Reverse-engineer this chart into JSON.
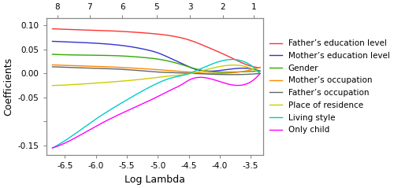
{
  "xlim": [
    -6.8,
    -3.3
  ],
  "ylim": [
    -0.17,
    0.115
  ],
  "xlabel": "Log Lambda",
  "ylabel": "Coefficients",
  "top_ticks": [
    "8",
    "7",
    "6",
    "5",
    "3",
    "2",
    "1"
  ],
  "top_tick_positions": [
    -6.62,
    -6.1,
    -5.57,
    -5.02,
    -4.48,
    -3.95,
    -3.45
  ],
  "xticks": [
    -6.5,
    -6.0,
    -5.5,
    -5.0,
    -4.5,
    -4.0,
    -3.5
  ],
  "yticks": [
    -0.15,
    -0.1,
    -0.05,
    0.0,
    0.05,
    0.1
  ],
  "ytick_labels": [
    "-0.15",
    "",
    "-0.05",
    "0.00",
    "0.05",
    "0.10"
  ],
  "series": [
    {
      "name": "Father’s education level",
      "color": "#FF3333",
      "points_x": [
        -6.7,
        -6.5,
        -6.0,
        -5.5,
        -5.0,
        -4.5,
        -4.2,
        -3.9,
        -3.6,
        -3.35
      ],
      "points_y": [
        0.093,
        0.092,
        0.09,
        0.087,
        0.082,
        0.07,
        0.055,
        0.038,
        0.02,
        0.012
      ]
    },
    {
      "name": "Mother’s education level",
      "color": "#3333CC",
      "points_x": [
        -6.7,
        -6.5,
        -6.0,
        -5.5,
        -5.2,
        -5.0,
        -4.8,
        -4.6,
        -4.5,
        -4.4,
        -4.3,
        -3.35
      ],
      "points_y": [
        0.067,
        0.066,
        0.063,
        0.057,
        0.05,
        0.043,
        0.032,
        0.02,
        0.014,
        0.009,
        0.006,
        0.005
      ]
    },
    {
      "name": "Gender",
      "color": "#33AA00",
      "points_x": [
        -6.7,
        -6.5,
        -6.0,
        -5.5,
        -5.2,
        -5.0,
        -4.8,
        -4.6,
        -4.4,
        -4.3,
        -3.35
      ],
      "points_y": [
        0.04,
        0.039,
        0.038,
        0.036,
        0.033,
        0.03,
        0.025,
        0.018,
        0.01,
        0.007,
        0.005
      ]
    },
    {
      "name": "Mother’s occupation",
      "color": "#FF8800",
      "points_x": [
        -6.7,
        -6.5,
        -6.0,
        -5.5,
        -5.0,
        -4.8,
        -4.6,
        -4.5,
        -3.35
      ],
      "points_y": [
        0.018,
        0.017,
        0.015,
        0.012,
        0.008,
        0.006,
        0.004,
        0.003,
        0.013
      ]
    },
    {
      "name": "Father’s occupation",
      "color": "#666666",
      "points_x": [
        -6.7,
        -6.5,
        -6.0,
        -5.5,
        -5.2,
        -5.0,
        -4.8,
        -4.6,
        -3.35
      ],
      "points_y": [
        0.014,
        0.013,
        0.011,
        0.008,
        0.005,
        0.003,
        0.002,
        0.001,
        0.0
      ]
    },
    {
      "name": "Place of residence",
      "color": "#CCCC00",
      "points_x": [
        -6.7,
        -6.5,
        -6.0,
        -5.5,
        -5.0,
        -4.8,
        -4.6,
        -4.5,
        -3.35
      ],
      "points_y": [
        -0.025,
        -0.024,
        -0.02,
        -0.015,
        -0.008,
        -0.005,
        -0.003,
        -0.001,
        0.0
      ]
    },
    {
      "name": "Living style",
      "color": "#00CCCC",
      "points_x": [
        -6.7,
        -6.5,
        -6.0,
        -5.5,
        -5.0,
        -4.8,
        -4.6,
        -4.5,
        -3.35
      ],
      "points_y": [
        -0.155,
        -0.14,
        -0.095,
        -0.055,
        -0.02,
        -0.01,
        -0.004,
        0.0,
        0.0
      ]
    },
    {
      "name": "Only child",
      "color": "#FF00FF",
      "points_x": [
        -6.7,
        -6.5,
        -6.0,
        -5.5,
        -5.0,
        -4.8,
        -4.6,
        -4.5,
        -4.3,
        -3.35
      ],
      "points_y": [
        -0.155,
        -0.145,
        -0.11,
        -0.078,
        -0.048,
        -0.035,
        -0.022,
        -0.014,
        -0.008,
        0.0
      ]
    }
  ],
  "background": "#FFFFFF",
  "legend_fontsize": 7.5,
  "tick_fontsize": 7.5,
  "label_fontsize": 9
}
